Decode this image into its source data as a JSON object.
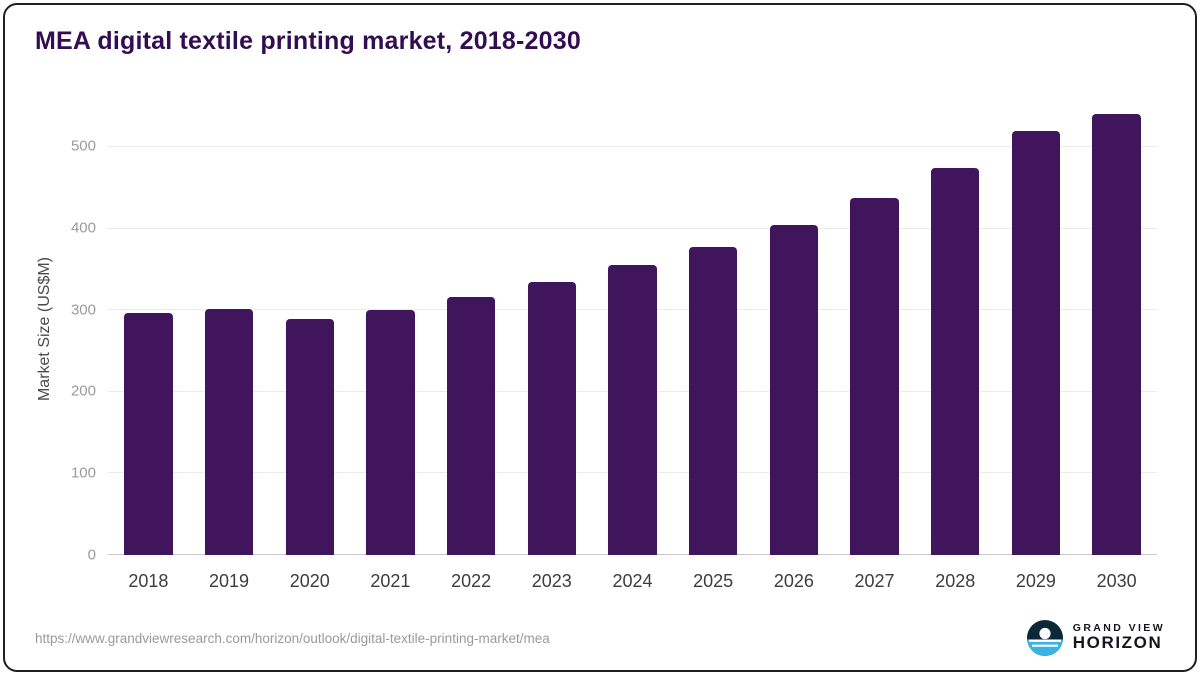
{
  "title": "MEA digital textile printing market, 2018-2030",
  "colors": {
    "bar": "#41155c",
    "title": "#330d52",
    "accent_teal": "#38b3e3",
    "frame_border": "#1e1e28",
    "gridline": "#ebebeb",
    "tick_text": "#9b9b9b"
  },
  "footer": {
    "source_url": "https://www.grandviewresearch.com/horizon/outlook/digital-textile-printing-market/mea",
    "brand_top": "GRAND VIEW",
    "brand_bottom": "HORIZON"
  },
  "chart_data": {
    "type": "bar",
    "title": "MEA digital textile printing market, 2018-2030",
    "categories": [
      "2018",
      "2019",
      "2020",
      "2021",
      "2022",
      "2023",
      "2024",
      "2025",
      "2026",
      "2027",
      "2028",
      "2029",
      "2030"
    ],
    "values": [
      296,
      301,
      289,
      300,
      316,
      334,
      355,
      378,
      404,
      437,
      474,
      519,
      541
    ],
    "xlabel": "",
    "ylabel": "Market Size (US$M)",
    "ylim": [
      0,
      560
    ],
    "yticks": [
      0,
      100,
      200,
      300,
      400,
      500
    ],
    "grid": true,
    "legend": "none",
    "bar_color": "#41155c"
  }
}
